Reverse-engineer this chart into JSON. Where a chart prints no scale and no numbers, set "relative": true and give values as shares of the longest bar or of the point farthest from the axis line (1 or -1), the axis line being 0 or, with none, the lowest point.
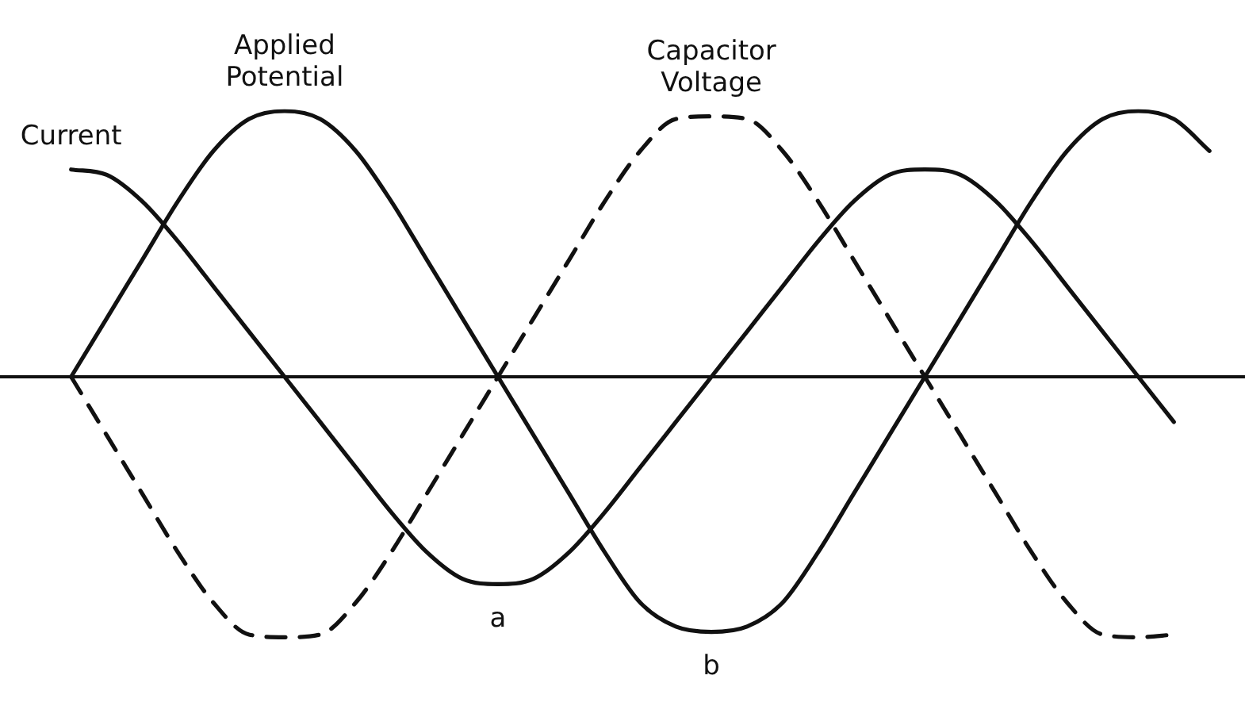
{
  "chart_data": {
    "type": "line",
    "relative": true,
    "marker": "none",
    "line_style": "solid",
    "grid": false,
    "categories": [
      null,
      null,
      null,
      null,
      null,
      null,
      null,
      null,
      null,
      null,
      null,
      null,
      null,
      null,
      null,
      null,
      null,
      null,
      null,
      null,
      null,
      null,
      null,
      null,
      null,
      null,
      null,
      null,
      null,
      null,
      null,
      null,
      null,
      null,
      null,
      null
    ],
    "series": [
      {
        "name": "Current",
        "color": "#111111",
        "values": [
          null,
          null,
          0.78,
          0.76,
          0.66,
          0.51,
          0.34,
          0.17,
          0,
          -0.17,
          -0.34,
          -0.51,
          -0.66,
          -0.76,
          -0.78,
          -0.76,
          -0.66,
          -0.51,
          -0.34,
          -0.17,
          0,
          0.17,
          0.34,
          0.51,
          0.66,
          0.76,
          0.78,
          0.76,
          0.66,
          0.51,
          0.34,
          0.17,
          0,
          -0.17,
          null,
          null
        ]
      },
      {
        "name": "Applied Potential",
        "color": "#111111",
        "values": [
          null,
          null,
          0,
          0.22,
          0.44,
          0.66,
          0.85,
          0.97,
          1,
          0.97,
          0.85,
          0.66,
          0.44,
          0.22,
          0,
          -0.22,
          -0.44,
          -0.66,
          -0.85,
          -0.94,
          -0.96,
          -0.94,
          -0.85,
          -0.66,
          -0.44,
          -0.22,
          0,
          0.22,
          0.44,
          0.66,
          0.85,
          0.97,
          1,
          0.97,
          0.85,
          null
        ]
      },
      {
        "name": "Capacitor Voltage",
        "color": "#111111",
        "line_style": "dashed",
        "values": [
          null,
          null,
          0,
          -0.22,
          -0.44,
          -0.66,
          -0.85,
          -0.97,
          -0.98,
          -0.97,
          -0.85,
          -0.66,
          -0.44,
          -0.22,
          0,
          0.22,
          0.44,
          0.66,
          0.85,
          0.97,
          0.98,
          0.97,
          0.85,
          0.66,
          0.44,
          0.22,
          0,
          -0.22,
          -0.44,
          -0.66,
          -0.85,
          -0.97,
          -0.98,
          -0.97,
          null,
          null
        ]
      }
    ],
    "annotations": [
      {
        "text": "a",
        "y": -0.78
      },
      {
        "text": "b",
        "y": -0.96
      }
    ]
  }
}
